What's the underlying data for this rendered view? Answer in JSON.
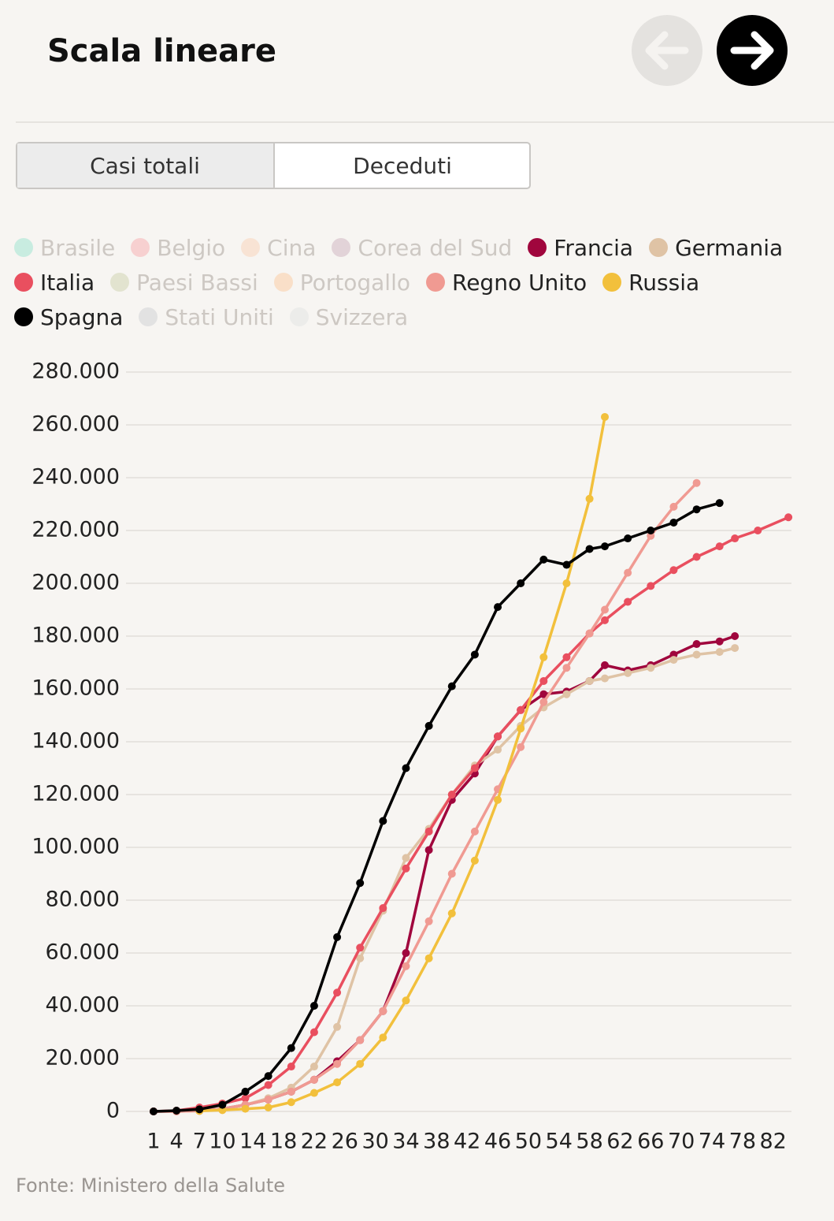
{
  "header": {
    "title": "Scala lineare"
  },
  "tabs": [
    "Casi totali",
    "Deceduti"
  ],
  "source": "Fonte: Ministero della Salute",
  "chart_data": {
    "type": "line",
    "x": [
      1,
      4,
      7,
      10,
      13,
      16,
      19,
      22,
      25,
      28,
      31,
      34,
      37,
      40,
      43,
      46,
      49,
      52,
      55,
      58,
      60,
      63,
      66,
      69,
      72,
      75,
      77,
      80,
      84
    ],
    "xlim": [
      -2.6,
      84.4
    ],
    "xticks": [
      1,
      4,
      7,
      10,
      14,
      18,
      22,
      26,
      30,
      34,
      38,
      42,
      46,
      50,
      54,
      58,
      62,
      66,
      70,
      74,
      78,
      82
    ],
    "ylim": [
      0,
      280000
    ],
    "yticks": [
      0,
      {
        "value": 20000,
        "label": "20.000"
      },
      {
        "value": 40000,
        "label": "40.000"
      },
      {
        "value": 60000,
        "label": "60.000"
      },
      {
        "value": 80000,
        "label": "80.000"
      },
      {
        "value": 100000,
        "label": "100.000"
      },
      {
        "value": 120000,
        "label": "120.000"
      },
      {
        "value": 140000,
        "label": "140.000"
      },
      {
        "value": 160000,
        "label": "160.000"
      },
      {
        "value": 180000,
        "label": "180.000"
      },
      {
        "value": 200000,
        "label": "200.000"
      },
      {
        "value": 220000,
        "label": "220.000"
      },
      {
        "value": 240000,
        "label": "240.000"
      },
      {
        "value": 260000,
        "label": "260.000"
      },
      {
        "value": 280000,
        "label": "280.000"
      }
    ],
    "grid": true,
    "series": [
      {
        "name": "Brasile",
        "color": "#c8ece0",
        "visible": false
      },
      {
        "name": "Belgio",
        "color": "#f7d0d0",
        "visible": false
      },
      {
        "name": "Cina",
        "color": "#f8e3d4",
        "visible": false
      },
      {
        "name": "Corea del Sud",
        "color": "#e2d3d8",
        "visible": false
      },
      {
        "name": "Francia",
        "color": "#a0063d",
        "visible": true,
        "values": [
          0,
          100,
          300,
          1000,
          2500,
          4500,
          7500,
          12000,
          19000,
          27000,
          38000,
          60000,
          99000,
          118000,
          128000,
          142000,
          152000,
          158000,
          159000,
          163000,
          169000,
          167000,
          169000,
          173000,
          177000,
          178000,
          180000,
          null,
          null
        ]
      },
      {
        "name": "Germania",
        "color": "#dfc3a5",
        "visible": true,
        "values": [
          0,
          0,
          200,
          1000,
          2500,
          5000,
          9000,
          17000,
          32000,
          58000,
          76000,
          96000,
          107000,
          120000,
          131000,
          137000,
          146000,
          153000,
          158000,
          163000,
          164000,
          166000,
          168000,
          171000,
          173000,
          174000,
          175500,
          null,
          null
        ]
      },
      {
        "name": "Italia",
        "color": "#e94f5f",
        "visible": true,
        "values": [
          0,
          300,
          1500,
          3000,
          5000,
          10000,
          17000,
          30000,
          45000,
          62000,
          77000,
          92000,
          106000,
          120000,
          130000,
          142000,
          152000,
          163000,
          172000,
          181000,
          186000,
          193000,
          199000,
          205000,
          210000,
          214000,
          217000,
          220000,
          225000
        ]
      },
      {
        "name": "Paesi Bassi",
        "color": "#e2e3cf",
        "visible": false
      },
      {
        "name": "Portogallo",
        "color": "#f9dfc8",
        "visible": false
      },
      {
        "name": "Regno Unito",
        "color": "#f09a92",
        "visible": true,
        "values": [
          0,
          0,
          200,
          1000,
          2500,
          4500,
          7500,
          12000,
          18000,
          27000,
          38000,
          55000,
          72000,
          90000,
          106000,
          122000,
          138000,
          155000,
          168000,
          181000,
          190000,
          204000,
          218000,
          229000,
          238000,
          null,
          null,
          null,
          null
        ]
      },
      {
        "name": "Russia",
        "color": "#f2c03c",
        "visible": true,
        "values": [
          null,
          null,
          200,
          500,
          1000,
          1500,
          3500,
          7000,
          11000,
          18000,
          28000,
          42000,
          58000,
          75000,
          95000,
          118000,
          145000,
          172000,
          200000,
          232000,
          263000,
          null,
          null,
          null,
          null,
          null,
          null,
          null,
          null
        ]
      },
      {
        "name": "Spagna",
        "color": "#000000",
        "visible": true,
        "values": [
          0,
          300,
          800,
          2500,
          7500,
          13400,
          24000,
          40000,
          66000,
          86500,
          110000,
          130000,
          146000,
          161000,
          173000,
          191000,
          200000,
          209000,
          207000,
          213000,
          214000,
          217000,
          220000,
          223000,
          228000,
          230400,
          null,
          null,
          null
        ]
      },
      {
        "name": "Stati Uniti",
        "color": "#e2e2e2",
        "visible": false
      },
      {
        "name": "Svizzera",
        "color": "#ececea",
        "visible": false
      }
    ]
  }
}
